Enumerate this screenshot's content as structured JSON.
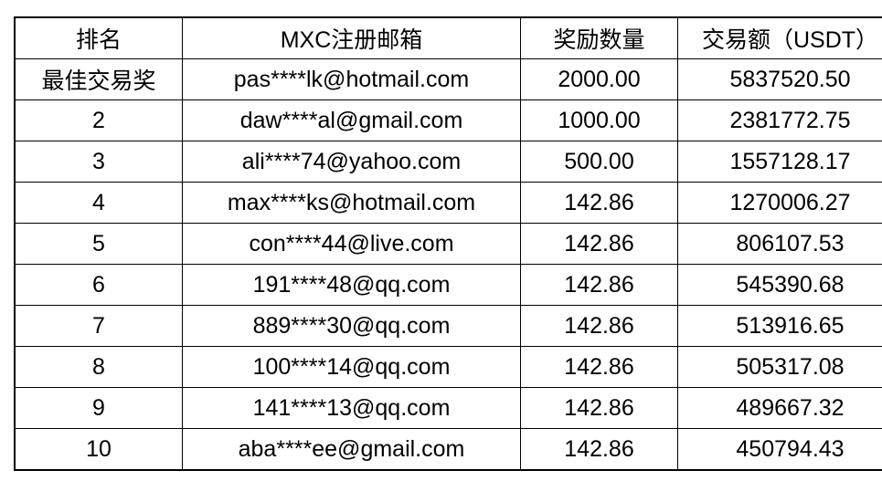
{
  "chart_data": {
    "type": "table",
    "columns": [
      {
        "key": "rank",
        "label": "排名"
      },
      {
        "key": "email",
        "label": "MXC注册邮箱"
      },
      {
        "key": "reward",
        "label": "奖励数量"
      },
      {
        "key": "volume",
        "label": "交易额（USDT）"
      }
    ],
    "rows": [
      {
        "rank": "最佳交易奖",
        "email": "pas****lk@hotmail.com",
        "reward": "2000.00",
        "volume": "5837520.50"
      },
      {
        "rank": "2",
        "email": "daw****al@gmail.com",
        "reward": "1000.00",
        "volume": "2381772.75"
      },
      {
        "rank": "3",
        "email": "ali****74@yahoo.com",
        "reward": "500.00",
        "volume": "1557128.17"
      },
      {
        "rank": "4",
        "email": "max****ks@hotmail.com",
        "reward": "142.86",
        "volume": "1270006.27"
      },
      {
        "rank": "5",
        "email": "con****44@live.com",
        "reward": "142.86",
        "volume": "806107.53"
      },
      {
        "rank": "6",
        "email": "191****48@qq.com",
        "reward": "142.86",
        "volume": "545390.68"
      },
      {
        "rank": "7",
        "email": "889****30@qq.com",
        "reward": "142.86",
        "volume": "513916.65"
      },
      {
        "rank": "8",
        "email": "100****14@qq.com",
        "reward": "142.86",
        "volume": "505317.08"
      },
      {
        "rank": "9",
        "email": "141****13@qq.com",
        "reward": "142.86",
        "volume": "489667.32"
      },
      {
        "rank": "10",
        "email": "aba****ee@gmail.com",
        "reward": "142.86",
        "volume": "450794.43"
      }
    ],
    "layout_hints": {
      "grid": "all-borders",
      "header_row": true
    }
  },
  "colors": {
    "border": "#000000",
    "text": "#000000",
    "background": "#ffffff"
  }
}
